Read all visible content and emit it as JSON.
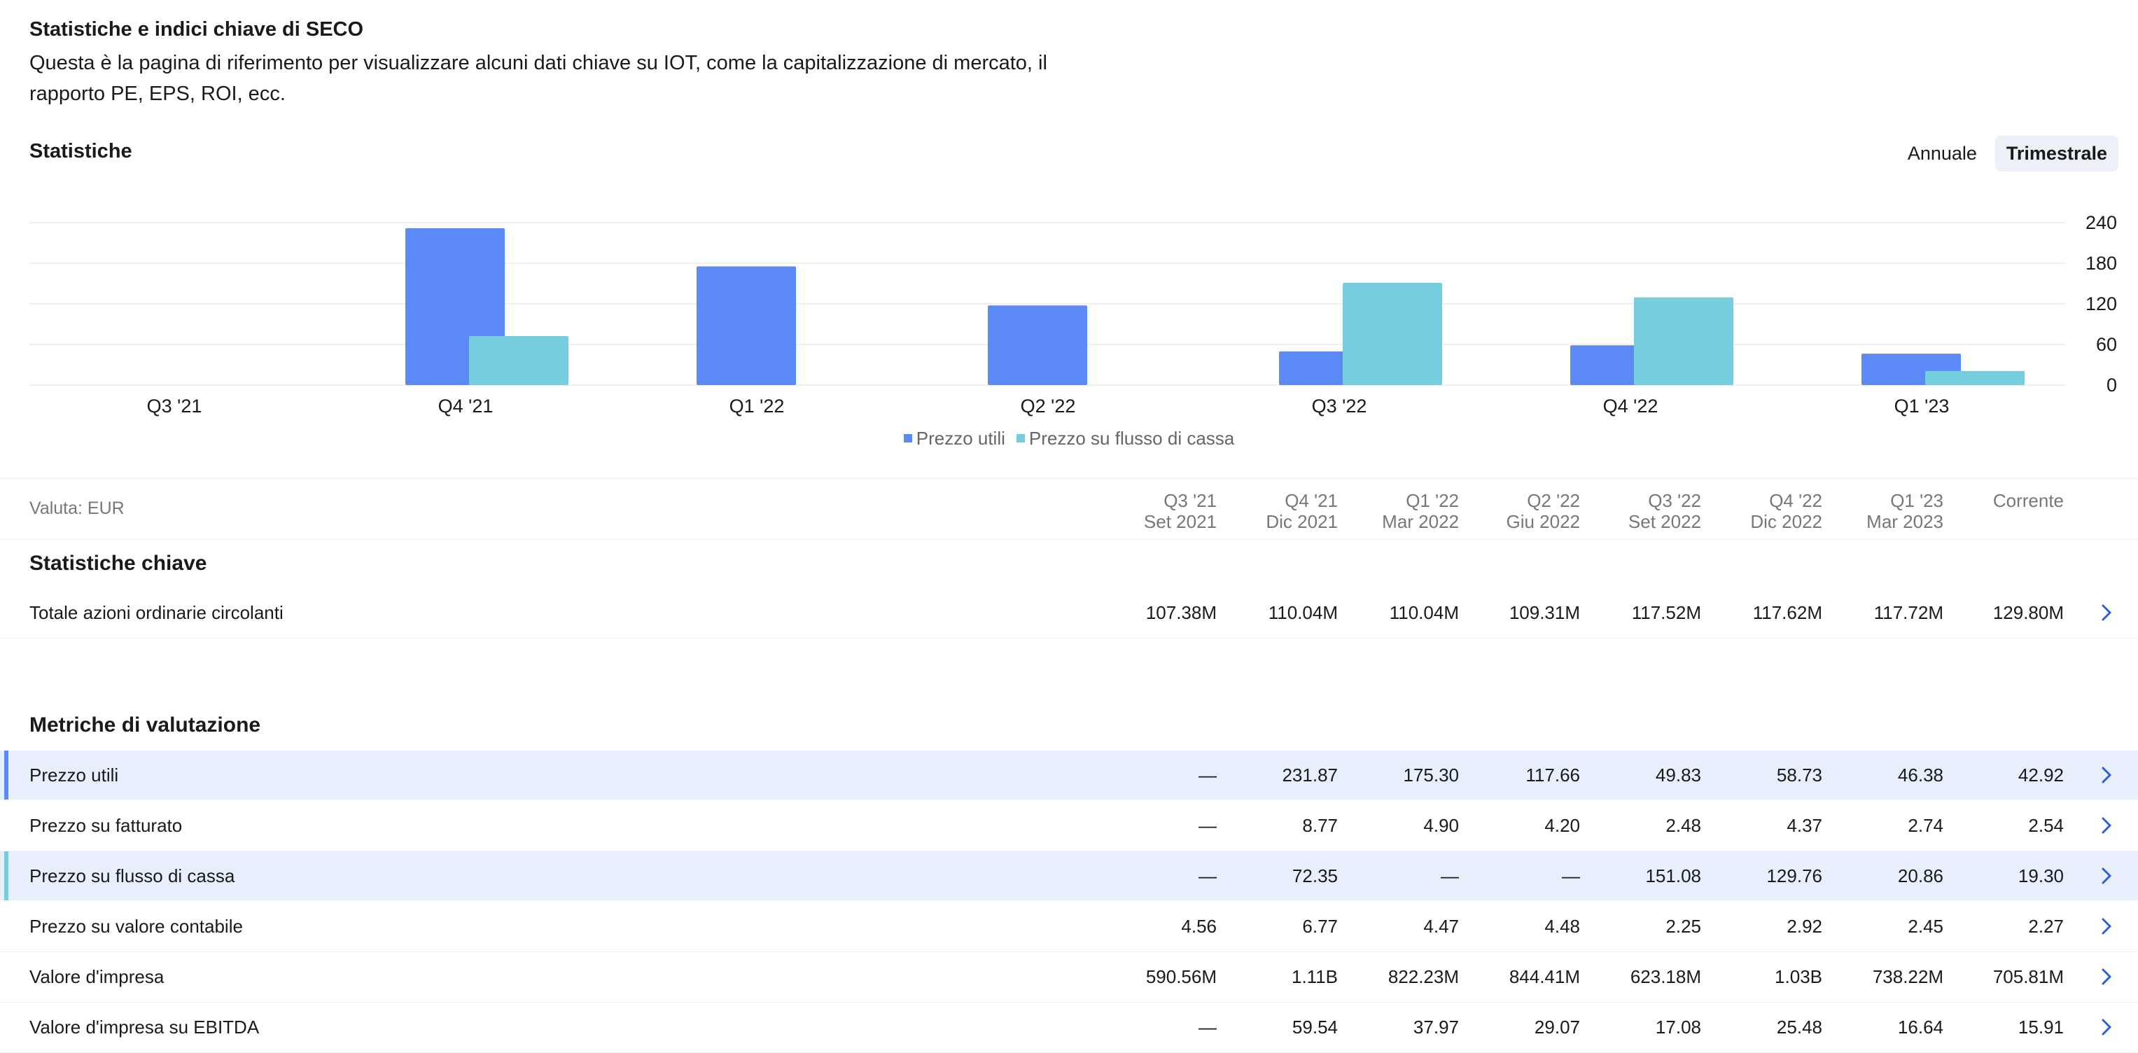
{
  "header": {
    "title": "Statistiche e indici chiave di SECO",
    "description": "Questa è la pagina di riferimento per visualizzare alcuni dati chiave su IOT, come la capitalizzazione di mercato, il rapporto PE, EPS, ROI, ecc."
  },
  "stats_section": {
    "title": "Statistiche",
    "toggle": {
      "annual": "Annuale",
      "quarterly": "Trimestrale",
      "active": "quarterly"
    }
  },
  "chart_data": {
    "type": "bar",
    "categories": [
      "Q3 '21",
      "Q4 '21",
      "Q1 '22",
      "Q2 '22",
      "Q3 '22",
      "Q4 '22",
      "Q1 '23"
    ],
    "series": [
      {
        "name": "Prezzo utili",
        "color": "#5b8af6",
        "values": [
          null,
          231.87,
          175.3,
          117.66,
          49.83,
          58.73,
          46.38
        ]
      },
      {
        "name": "Prezzo su flusso di cassa",
        "color": "#75cede",
        "values": [
          null,
          72.35,
          null,
          null,
          151.08,
          129.76,
          20.86
        ]
      }
    ],
    "y_ticks": [
      "240",
      "180",
      "120",
      "60",
      "0"
    ],
    "ylim": [
      0,
      240
    ],
    "y_axis_side": "right",
    "grid": true,
    "legend_position": "bottom"
  },
  "table": {
    "currency_label": "Valuta: EUR",
    "columns": [
      {
        "quarter": "Q3 '21",
        "date": "Set 2021"
      },
      {
        "quarter": "Q4 '21",
        "date": "Dic 2021"
      },
      {
        "quarter": "Q1 '22",
        "date": "Mar 2022"
      },
      {
        "quarter": "Q2 '22",
        "date": "Giu 2022"
      },
      {
        "quarter": "Q3 '22",
        "date": "Set 2022"
      },
      {
        "quarter": "Q4 '22",
        "date": "Dic 2022"
      },
      {
        "quarter": "Q1 '23",
        "date": "Mar 2023"
      },
      {
        "quarter": "Corrente",
        "date": ""
      }
    ],
    "groups": [
      {
        "title": "Statistiche chiave",
        "rows": [
          {
            "label": "Totale azioni ordinarie circolanti",
            "values": [
              "107.38M",
              "110.04M",
              "110.04M",
              "109.31M",
              "117.52M",
              "117.62M",
              "117.72M",
              "129.80M"
            ],
            "highlight": null
          }
        ]
      },
      {
        "title": "Metriche di valutazione",
        "rows": [
          {
            "label": "Prezzo utili",
            "values": [
              "—",
              "231.87",
              "175.30",
              "117.66",
              "49.83",
              "58.73",
              "46.38",
              "42.92"
            ],
            "highlight": "#5b8af6"
          },
          {
            "label": "Prezzo su fatturato",
            "values": [
              "—",
              "8.77",
              "4.90",
              "4.20",
              "2.48",
              "4.37",
              "2.74",
              "2.54"
            ],
            "highlight": null
          },
          {
            "label": "Prezzo su flusso di cassa",
            "values": [
              "—",
              "72.35",
              "—",
              "—",
              "151.08",
              "129.76",
              "20.86",
              "19.30"
            ],
            "highlight": "#75cede"
          },
          {
            "label": "Prezzo su valore contabile",
            "values": [
              "4.56",
              "6.77",
              "4.47",
              "4.48",
              "2.25",
              "2.92",
              "2.45",
              "2.27"
            ],
            "highlight": null
          },
          {
            "label": "Valore d'impresa",
            "values": [
              "590.56M",
              "1.11B",
              "822.23M",
              "844.41M",
              "623.18M",
              "1.03B",
              "738.22M",
              "705.81M"
            ],
            "highlight": null
          },
          {
            "label": "Valore d'impresa su EBITDA",
            "values": [
              "—",
              "59.54",
              "37.97",
              "29.07",
              "17.08",
              "25.48",
              "16.64",
              "15.91"
            ],
            "highlight": null
          }
        ]
      }
    ]
  },
  "icons": {
    "row_action": "chevron-right-icon",
    "accent": "#2b5fd9"
  }
}
